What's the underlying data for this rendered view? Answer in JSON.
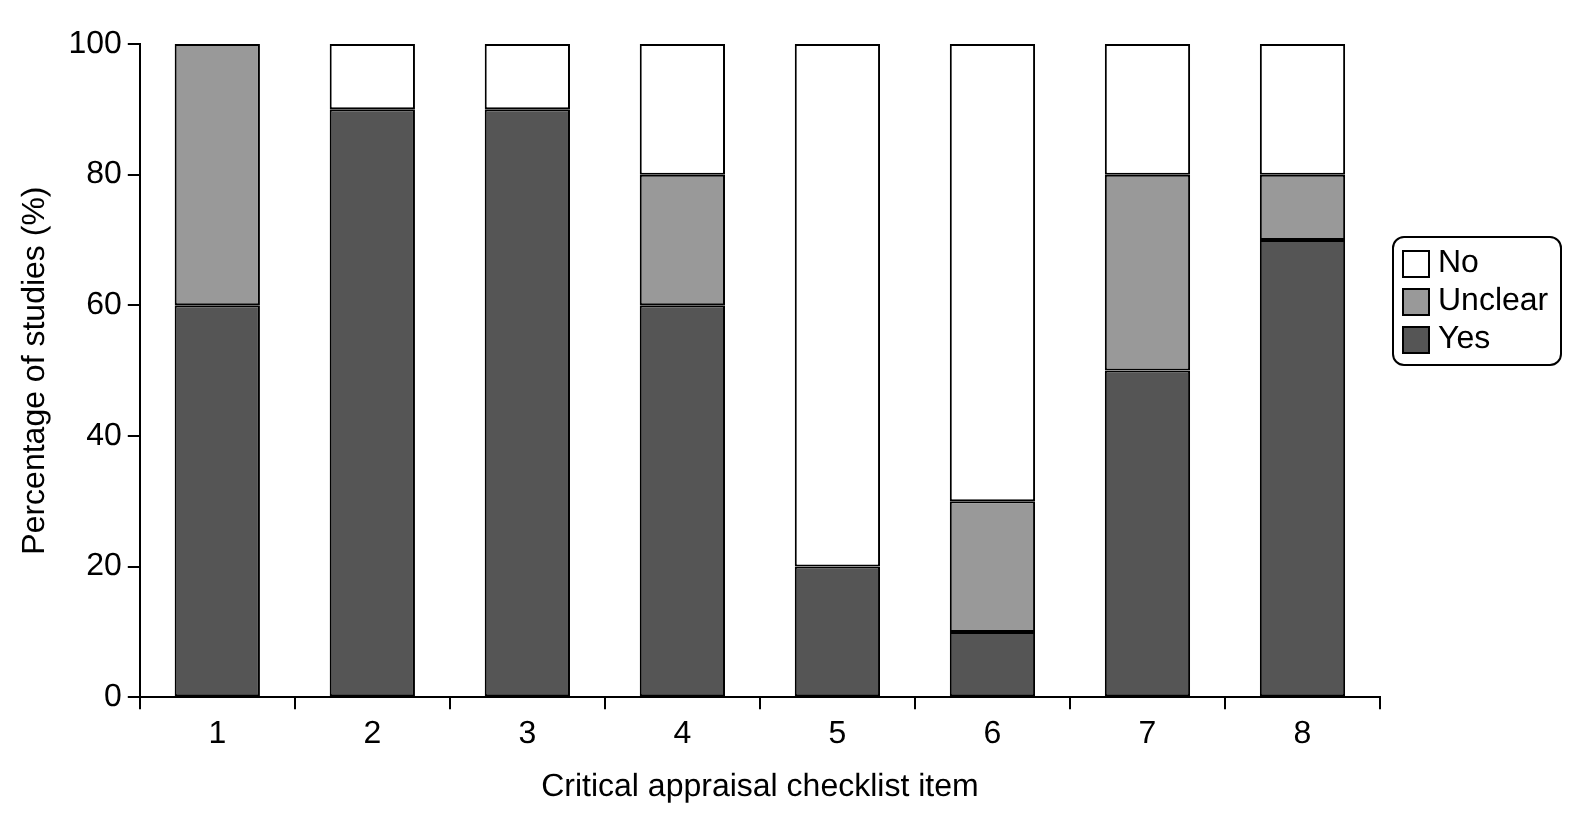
{
  "chart_data": {
    "type": "bar",
    "stacked": true,
    "xlabel": "Critical appraisal checklist item",
    "ylabel": "Percentage of studies (%)",
    "categories": [
      "1",
      "2",
      "3",
      "4",
      "5",
      "6",
      "7",
      "8"
    ],
    "series": [
      {
        "name": "Yes",
        "color": "#555555",
        "values": [
          60,
          90,
          90,
          60,
          20,
          10,
          50,
          70
        ]
      },
      {
        "name": "Unclear",
        "color": "#999999",
        "values": [
          40,
          0,
          0,
          20,
          0,
          20,
          30,
          10
        ]
      },
      {
        "name": "No",
        "color": "#ffffff",
        "values": [
          0,
          10,
          10,
          20,
          80,
          70,
          20,
          20
        ]
      }
    ],
    "ylim": [
      0,
      100
    ],
    "yticks": [
      0,
      20,
      40,
      60,
      80,
      100
    ],
    "grid": false,
    "legend": "right"
  }
}
